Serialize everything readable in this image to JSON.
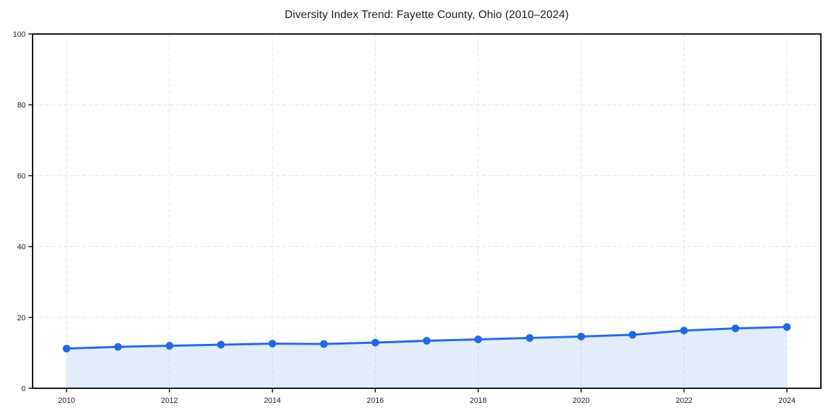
{
  "chart_data": {
    "type": "line",
    "title": "Diversity Index Trend: Fayette County, Ohio (2010–2024)",
    "xlabel": "",
    "ylabel": "",
    "x": [
      2010,
      2011,
      2012,
      2013,
      2014,
      2015,
      2016,
      2017,
      2018,
      2019,
      2020,
      2021,
      2022,
      2023,
      2024
    ],
    "series": [
      {
        "name": "Diversity Index",
        "values": [
          11.2,
          11.7,
          12.0,
          12.3,
          12.6,
          12.5,
          12.9,
          13.4,
          13.8,
          14.2,
          14.6,
          15.1,
          16.3,
          16.9,
          17.3
        ]
      }
    ],
    "ylim": [
      0,
      100
    ],
    "yticks": [
      0,
      20,
      40,
      60,
      80,
      100
    ],
    "xticks": [
      2010,
      2012,
      2014,
      2016,
      2018,
      2020,
      2022,
      2024
    ],
    "grid": true,
    "grid_style": "dashed",
    "legend": false,
    "area_fill_under_line": true,
    "colors": {
      "line": "#2169e0",
      "marker": "#2169e0",
      "area_fill": "#2169e0",
      "area_fill_opacity": 0.13,
      "grid": "#e3e3e3",
      "axis_box": "#111111",
      "tick_text": "#1a1a1a",
      "background": "#ffffff"
    }
  }
}
